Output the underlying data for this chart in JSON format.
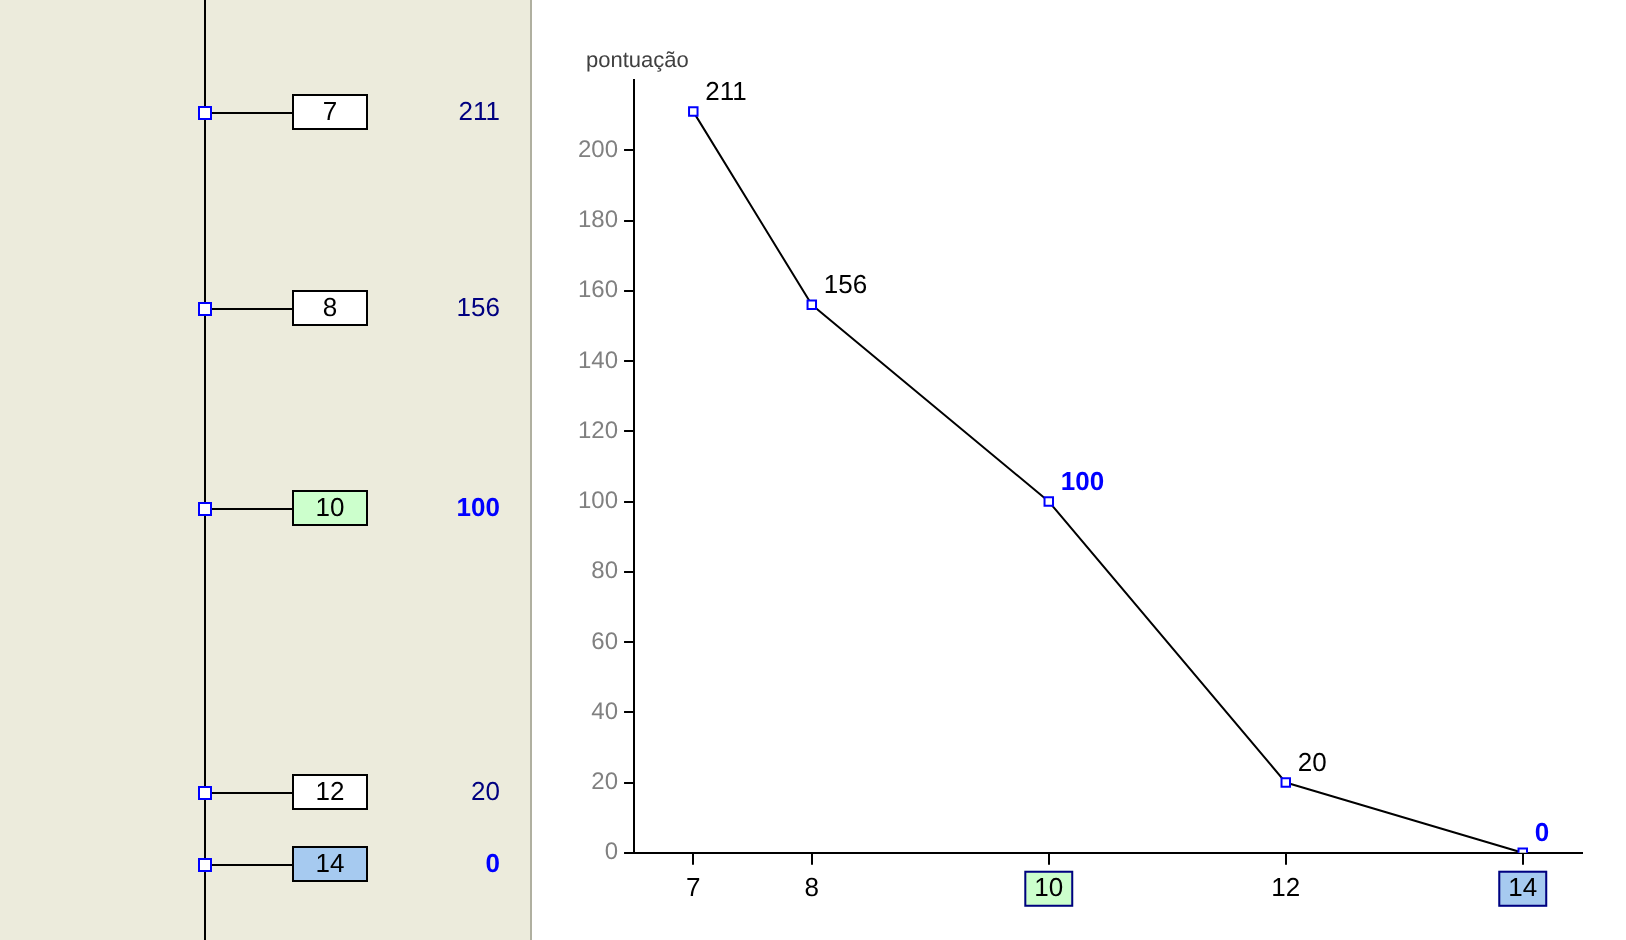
{
  "chart_data": [
    {
      "type": "other",
      "categories": [
        "7",
        "8",
        "10",
        "12",
        "14"
      ],
      "values": [
        211,
        156,
        100,
        20,
        0
      ],
      "data_labels": true
    },
    {
      "type": "line",
      "ylabel": "pontuação",
      "x": [
        7,
        8,
        10,
        12,
        14
      ],
      "series": [
        {
          "color": "#000000",
          "values": [
            211,
            156,
            100,
            20,
            0
          ]
        }
      ],
      "colors": [
        "#ffffff",
        "#ffffff",
        "#ccffcc",
        "#ffffff",
        "#a6caf0"
      ],
      "xlim": [
        6.5,
        14.5
      ],
      "xticks": [
        7,
        8,
        10,
        12,
        14
      ],
      "ylim": [
        0,
        220
      ],
      "yticks": [
        0,
        20,
        40,
        60,
        80,
        100,
        120,
        140,
        160,
        180,
        200
      ],
      "data_labels": true,
      "marker": "square",
      "grid": false,
      "legend": false
    }
  ]
}
